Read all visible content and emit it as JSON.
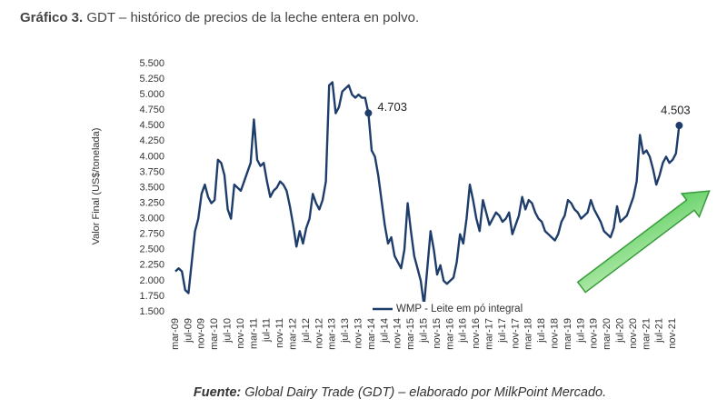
{
  "chart_data": {
    "type": "line",
    "title_prefix": "Gráfico 3.",
    "title": "GDT – histórico de precios de la leche entera en polvo.",
    "ylabel": "Valor Final (US$/tonelada)",
    "source_prefix": "Fuente:",
    "source": "Global Dairy Trade (GDT) – elaborado por MilkPoint Mercado.",
    "categories": [
      "mar-09",
      null,
      null,
      null,
      "jul-09",
      null,
      null,
      null,
      "nov-09",
      null,
      null,
      null,
      "mar-10",
      null,
      null,
      null,
      "jul-10",
      null,
      null,
      null,
      "nov-10",
      null,
      null,
      null,
      "mar-11",
      null,
      null,
      null,
      "jul-11",
      null,
      null,
      null,
      "nov-11",
      null,
      null,
      null,
      "mar-12",
      null,
      null,
      null,
      "jul-12",
      null,
      null,
      null,
      "nov-12",
      null,
      null,
      null,
      "mar-13",
      null,
      null,
      null,
      "jul-13",
      null,
      null,
      null,
      "nov-13",
      null,
      null,
      null,
      "mar-14",
      null,
      null,
      null,
      "jul-14",
      null,
      null,
      null,
      "nov-14",
      null,
      null,
      null,
      "mar-15",
      null,
      null,
      null,
      "jul-15",
      null,
      null,
      null,
      "nov-15",
      null,
      null,
      null,
      "mar-16",
      null,
      null,
      null,
      "jul-16",
      null,
      null,
      null,
      "nov-16",
      null,
      null,
      null,
      "mar-17",
      null,
      null,
      null,
      "jul-17",
      null,
      null,
      null,
      "nov-17",
      null,
      null,
      null,
      "mar-18",
      null,
      null,
      null,
      "jul-18",
      null,
      null,
      null,
      "nov-18",
      null,
      null,
      null,
      "mar-19",
      null,
      null,
      null,
      "jul-19",
      null,
      null,
      null,
      "nov-19",
      null,
      null,
      null,
      "mar-20",
      null,
      null,
      null,
      "jul-20",
      null,
      null,
      null,
      "nov-20",
      null,
      null,
      null,
      "mar-21",
      null,
      null,
      null,
      "jul-21",
      null,
      null,
      null,
      "nov-21",
      null,
      null
    ],
    "series": [
      {
        "name": "WMP - Leite em pó integral",
        "color": "#1f3d6b",
        "values": [
          2.15,
          2.2,
          2.15,
          1.85,
          1.8,
          2.3,
          2.8,
          3.0,
          3.4,
          3.55,
          3.35,
          3.25,
          3.3,
          3.95,
          3.9,
          3.7,
          3.15,
          3.0,
          3.55,
          3.5,
          3.45,
          3.6,
          3.75,
          3.9,
          4.6,
          3.95,
          3.85,
          3.9,
          3.6,
          3.35,
          3.45,
          3.5,
          3.6,
          3.55,
          3.45,
          3.2,
          2.9,
          2.55,
          2.8,
          2.6,
          2.85,
          3.0,
          3.4,
          3.25,
          3.15,
          3.3,
          3.6,
          5.15,
          5.2,
          4.7,
          4.8,
          5.05,
          5.1,
          5.15,
          5.0,
          4.95,
          5.0,
          4.95,
          4.95,
          4.703,
          4.1,
          4.0,
          3.7,
          3.3,
          2.9,
          2.6,
          2.7,
          2.4,
          2.3,
          2.2,
          2.5,
          3.25,
          2.8,
          2.4,
          2.2,
          2.0,
          1.6,
          2.2,
          2.8,
          2.5,
          2.1,
          2.25,
          2.0,
          1.95,
          2.0,
          2.05,
          2.3,
          2.75,
          2.6,
          3.0,
          3.55,
          3.3,
          3.0,
          2.8,
          3.3,
          3.1,
          2.9,
          3.0,
          3.1,
          3.05,
          2.95,
          3.0,
          3.1,
          2.75,
          2.9,
          3.05,
          3.35,
          3.15,
          3.3,
          3.25,
          3.1,
          3.0,
          2.95,
          2.8,
          2.75,
          2.7,
          2.65,
          2.75,
          2.95,
          3.05,
          3.3,
          3.25,
          3.15,
          3.1,
          3.0,
          3.05,
          3.1,
          3.3,
          3.15,
          3.05,
          2.95,
          2.8,
          2.75,
          2.7,
          2.85,
          3.2,
          2.95,
          3.0,
          3.05,
          3.2,
          3.35,
          3.6,
          4.35,
          4.05,
          4.1,
          4.0,
          3.8,
          3.55,
          3.7,
          3.9,
          4.0,
          3.9,
          3.95,
          4.05,
          4.503
        ],
        "value_labels": [
          null,
          null,
          null,
          null,
          null,
          null,
          null,
          null,
          null,
          null,
          null,
          null,
          null,
          null,
          null,
          null,
          null,
          null,
          null,
          null,
          null,
          null,
          null,
          null,
          null,
          null,
          null,
          null,
          null,
          null,
          null,
          null,
          null,
          null,
          null,
          null,
          null,
          null,
          null,
          null,
          null,
          null,
          null,
          null,
          null,
          null,
          null,
          null,
          null,
          null,
          null,
          null,
          null,
          null,
          null,
          null,
          null,
          null,
          null,
          "4.703",
          null,
          null,
          null,
          null,
          null,
          null,
          null,
          null,
          null,
          null,
          null,
          null,
          null,
          null,
          null,
          null,
          null,
          null,
          null,
          null,
          null,
          null,
          null,
          null,
          null,
          null,
          null,
          null,
          null,
          null,
          null,
          null,
          null,
          null,
          null,
          null,
          null,
          null,
          null,
          null,
          null,
          null,
          null,
          null,
          null,
          null,
          null,
          null,
          null,
          null,
          null,
          null,
          null,
          null,
          null,
          null,
          null,
          null,
          null,
          null,
          null,
          null,
          null,
          null,
          null,
          null,
          null,
          null,
          null,
          null,
          null,
          null,
          null,
          null,
          null,
          null,
          null,
          null,
          null,
          null,
          null,
          null,
          null,
          null,
          null,
          null,
          null,
          null,
          null,
          null,
          null,
          null,
          null,
          null,
          "4.503"
        ]
      }
    ],
    "ylim": [
      1.5,
      5.5
    ],
    "yticks": [
      {
        "value": 1.5,
        "label": "1.500"
      },
      {
        "value": 1.75,
        "label": "1.750"
      },
      {
        "value": 2,
        "label": "2.000"
      },
      {
        "value": 2.25,
        "label": "2.250"
      },
      {
        "value": 2.5,
        "label": "2.500"
      },
      {
        "value": 2.75,
        "label": "2.750"
      },
      {
        "value": 3,
        "label": "3.000"
      },
      {
        "value": 3.25,
        "label": "3.250"
      },
      {
        "value": 3.5,
        "label": "3.500"
      },
      {
        "value": 3.75,
        "label": "3.750"
      },
      {
        "value": 4,
        "label": "4.000"
      },
      {
        "value": 4.25,
        "label": "4.250"
      },
      {
        "value": 4.5,
        "label": "4.500"
      },
      {
        "value": 4.75,
        "label": "4.750"
      },
      {
        "value": 5,
        "label": "5.000"
      },
      {
        "value": 5.25,
        "label": "5.250"
      },
      {
        "value": 5.5,
        "label": "5.500"
      }
    ],
    "grid": false,
    "legend": "bottom"
  }
}
